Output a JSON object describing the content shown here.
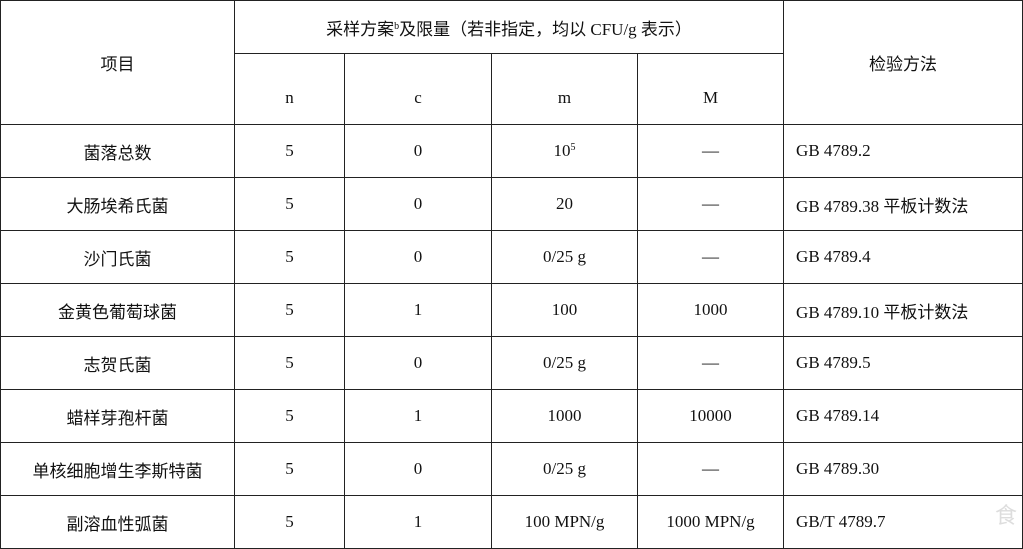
{
  "header": {
    "item": "项目",
    "sampling_pre": "采样方案",
    "sampling_sup": "b",
    "sampling_post": "及限量（若非指定，均以 CFU/g  表示）",
    "method": "检验方法",
    "n": "n",
    "c": "c",
    "m": "m",
    "M": "M"
  },
  "rows": [
    {
      "item": "菌落总数",
      "n": "5",
      "c": "0",
      "m": "10",
      "m_sup": "5",
      "M": "—",
      "method": "GB 4789.2"
    },
    {
      "item": "大肠埃希氏菌",
      "n": "5",
      "c": "0",
      "m": "20",
      "M": "—",
      "method": "GB 4789.38 平板计数法"
    },
    {
      "item": "沙门氏菌",
      "n": "5",
      "c": "0",
      "m": "0/25 g",
      "M": "—",
      "method": "GB 4789.4"
    },
    {
      "item": "金黄色葡萄球菌",
      "n": "5",
      "c": "1",
      "m": "100",
      "M": "1000",
      "method": "GB 4789.10 平板计数法"
    },
    {
      "item": "志贺氏菌",
      "n": "5",
      "c": "0",
      "m": "0/25 g",
      "M": "—",
      "method": "GB 4789.5"
    },
    {
      "item": "蜡样芽孢杆菌",
      "n": "5",
      "c": "1",
      "m": "1000",
      "M": "10000",
      "method": "GB 4789.14"
    },
    {
      "item": "单核细胞增生李斯特菌",
      "n": "5",
      "c": "0",
      "m": "0/25 g",
      "M": "—",
      "method": "GB 4789.30"
    },
    {
      "item": "副溶血性弧菌",
      "n": "5",
      "c": "1",
      "m": "100 MPN/g",
      "M": "1000 MPN/g",
      "method": "GB/T 4789.7"
    }
  ],
  "watermark": "食"
}
